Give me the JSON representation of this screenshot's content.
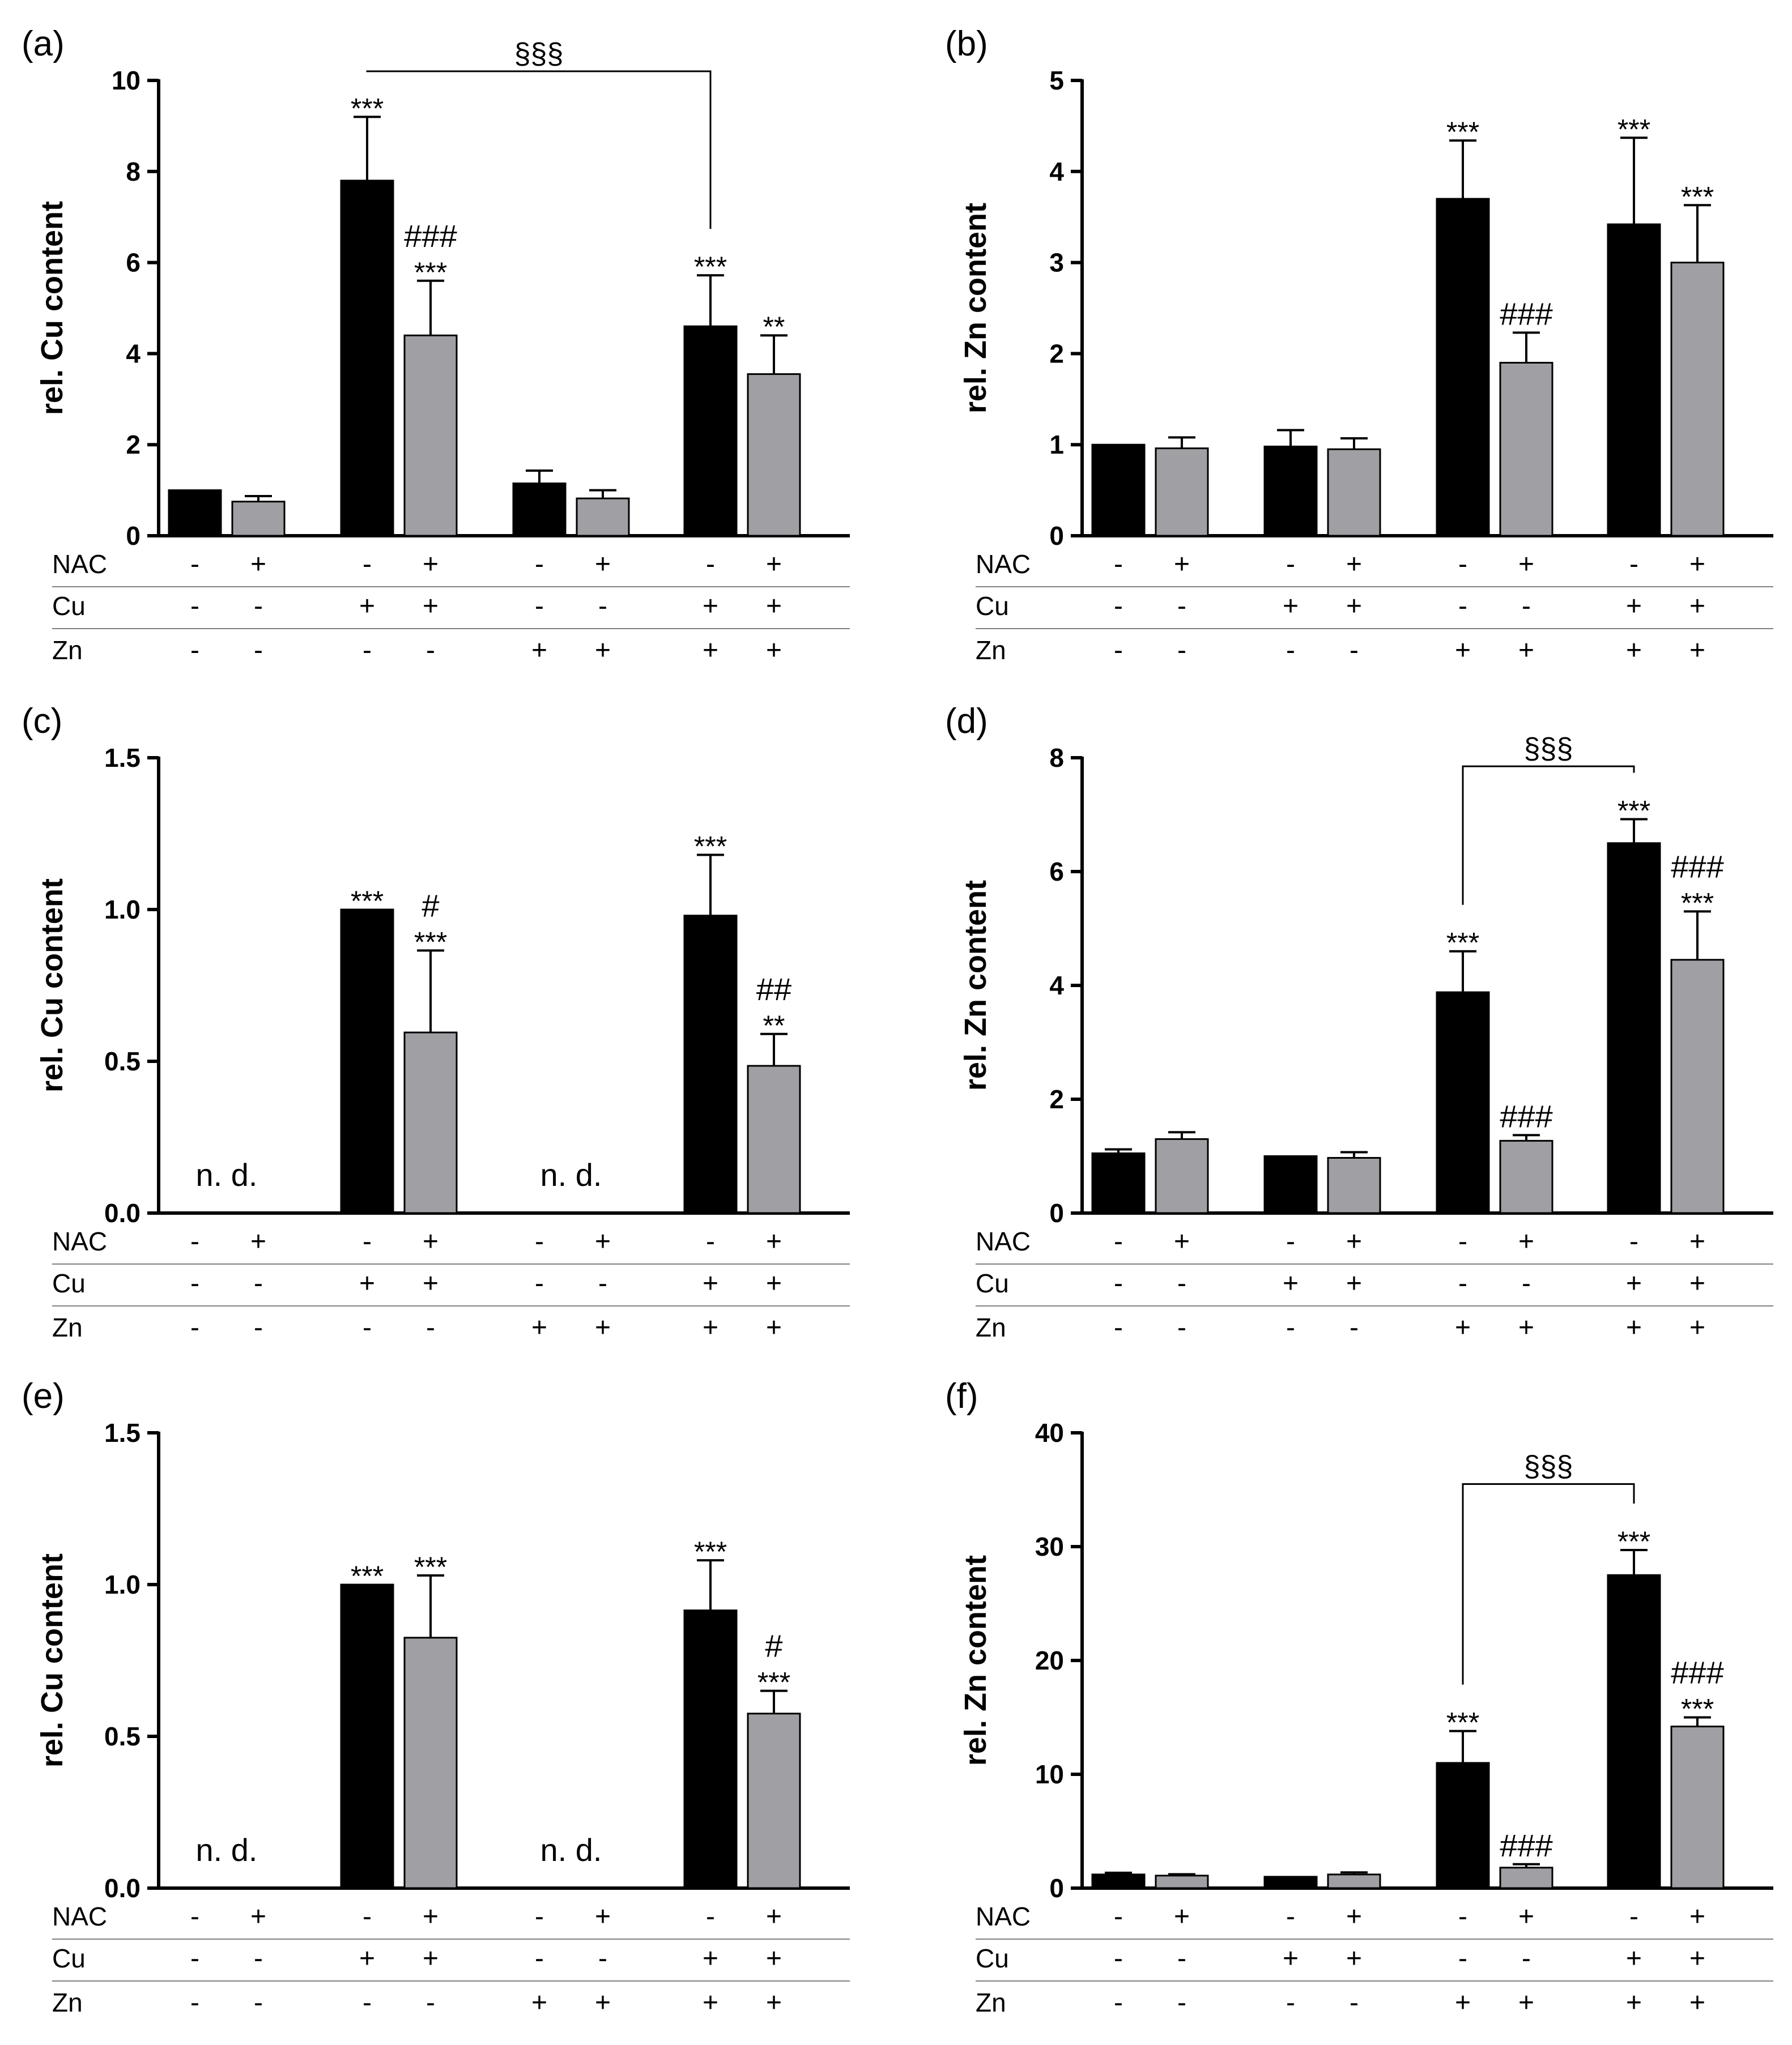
{
  "chart_data": [
    {
      "id": "a",
      "type": "bar",
      "panel_label": "(a)",
      "ylabel": "rel. Cu content",
      "ylim": [
        0,
        10
      ],
      "yticks": [
        0,
        2,
        4,
        6,
        8,
        10
      ],
      "ytick_labels": [
        "0",
        "2",
        "4",
        "6",
        "8",
        "10"
      ],
      "series": [
        {
          "name": "without NAC",
          "color": "#000000",
          "values": [
            1.0,
            7.8,
            1.15,
            4.6
          ],
          "errors": [
            0,
            1.4,
            0.28,
            1.12
          ]
        },
        {
          "name": "with NAC",
          "color": "#a0a0a4",
          "values": [
            0.75,
            4.4,
            0.82,
            3.55
          ],
          "errors": [
            0.12,
            1.2,
            0.18,
            0.85
          ]
        }
      ],
      "annotations": [
        {
          "group": 1,
          "series": 0,
          "lines": [
            "***"
          ]
        },
        {
          "group": 1,
          "series": 1,
          "lines": [
            "###",
            "***"
          ]
        },
        {
          "group": 3,
          "series": 0,
          "lines": [
            "***"
          ]
        },
        {
          "group": 3,
          "series": 1,
          "lines": [
            "**"
          ]
        }
      ],
      "bracket": {
        "label": "§§§",
        "from_group": 1,
        "to_group": 3,
        "level": 10.2
      },
      "not_detected": []
    },
    {
      "id": "b",
      "type": "bar",
      "panel_label": "(b)",
      "ylabel": "rel. Zn content",
      "ylim": [
        0,
        5
      ],
      "yticks": [
        0,
        1,
        2,
        3,
        4,
        5
      ],
      "ytick_labels": [
        "0",
        "1",
        "2",
        "3",
        "4",
        "5"
      ],
      "series": [
        {
          "name": "without NAC",
          "color": "#000000",
          "values": [
            1.0,
            0.98,
            3.7,
            3.42
          ],
          "errors": [
            0,
            0.18,
            0.64,
            0.95
          ]
        },
        {
          "name": "with NAC",
          "color": "#a0a0a4",
          "values": [
            0.96,
            0.95,
            1.9,
            3.0
          ],
          "errors": [
            0.12,
            0.12,
            0.33,
            0.63
          ]
        }
      ],
      "annotations": [
        {
          "group": 2,
          "series": 0,
          "lines": [
            "***"
          ]
        },
        {
          "group": 2,
          "series": 1,
          "lines": [
            "###"
          ]
        },
        {
          "group": 3,
          "series": 0,
          "lines": [
            "***"
          ]
        },
        {
          "group": 3,
          "series": 1,
          "lines": [
            "***"
          ]
        }
      ],
      "bracket": null,
      "not_detected": []
    },
    {
      "id": "c",
      "type": "bar",
      "panel_label": "(c)",
      "ylabel": "rel. Cu content",
      "ylim": [
        0,
        1.5
      ],
      "yticks": [
        0,
        0.5,
        1.0,
        1.5
      ],
      "ytick_labels": [
        "0.0",
        "0.5",
        "1.0",
        "1.5"
      ],
      "series": [
        {
          "name": "without NAC",
          "color": "#000000",
          "values": [
            0,
            1.0,
            0,
            0.98
          ],
          "errors": [
            0,
            0,
            0,
            0.2
          ]
        },
        {
          "name": "with NAC",
          "color": "#a0a0a4",
          "values": [
            0,
            0.595,
            0,
            0.485
          ],
          "errors": [
            0,
            0.27,
            0,
            0.105
          ]
        }
      ],
      "annotations": [
        {
          "group": 1,
          "series": 0,
          "lines": [
            "***"
          ]
        },
        {
          "group": 1,
          "series": 1,
          "lines": [
            "#",
            "***"
          ]
        },
        {
          "group": 3,
          "series": 0,
          "lines": [
            "***"
          ]
        },
        {
          "group": 3,
          "series": 1,
          "lines": [
            "##",
            "**"
          ]
        }
      ],
      "bracket": null,
      "not_detected": [
        {
          "group": 0,
          "text": "n. d."
        },
        {
          "group": 2,
          "text": "n. d."
        }
      ]
    },
    {
      "id": "d",
      "type": "bar",
      "panel_label": "(d)",
      "ylabel": "rel. Zn content",
      "ylim": [
        0,
        8
      ],
      "yticks": [
        0,
        2,
        4,
        6,
        8
      ],
      "ytick_labels": [
        "0",
        "2",
        "4",
        "6",
        "8"
      ],
      "series": [
        {
          "name": "without NAC",
          "color": "#000000",
          "values": [
            1.05,
            1.0,
            3.88,
            6.5
          ],
          "errors": [
            0.07,
            0,
            0.72,
            0.42
          ]
        },
        {
          "name": "with NAC",
          "color": "#a0a0a4",
          "values": [
            1.3,
            0.97,
            1.27,
            4.45
          ],
          "errors": [
            0.12,
            0.1,
            0.1,
            0.85
          ]
        }
      ],
      "annotations": [
        {
          "group": 2,
          "series": 0,
          "lines": [
            "***"
          ]
        },
        {
          "group": 2,
          "series": 1,
          "lines": [
            "###"
          ]
        },
        {
          "group": 3,
          "series": 0,
          "lines": [
            "***"
          ]
        },
        {
          "group": 3,
          "series": 1,
          "lines": [
            "###",
            "***"
          ]
        }
      ],
      "bracket": {
        "label": "§§§",
        "from_group": 2,
        "to_group": 3,
        "level": 7.85
      },
      "not_detected": []
    },
    {
      "id": "e",
      "type": "bar",
      "panel_label": "(e)",
      "ylabel": "rel. Cu content",
      "ylim": [
        0,
        1.5
      ],
      "yticks": [
        0,
        0.5,
        1.0,
        1.5
      ],
      "ytick_labels": [
        "0.0",
        "0.5",
        "1.0",
        "1.5"
      ],
      "series": [
        {
          "name": "without NAC",
          "color": "#000000",
          "values": [
            0,
            1.0,
            0,
            0.915
          ],
          "errors": [
            0,
            0,
            0,
            0.165
          ]
        },
        {
          "name": "with NAC",
          "color": "#a0a0a4",
          "values": [
            0,
            0.825,
            0,
            0.575
          ],
          "errors": [
            0,
            0.205,
            0,
            0.075
          ]
        }
      ],
      "annotations": [
        {
          "group": 1,
          "series": 0,
          "lines": [
            "***"
          ]
        },
        {
          "group": 1,
          "series": 1,
          "lines": [
            "***"
          ]
        },
        {
          "group": 3,
          "series": 0,
          "lines": [
            "***"
          ]
        },
        {
          "group": 3,
          "series": 1,
          "lines": [
            "#",
            "***"
          ]
        }
      ],
      "bracket": null,
      "not_detected": [
        {
          "group": 0,
          "text": "n. d."
        },
        {
          "group": 2,
          "text": "n. d."
        }
      ]
    },
    {
      "id": "f",
      "type": "bar",
      "panel_label": "(f)",
      "ylabel": "rel. Zn content",
      "ylim": [
        0,
        40
      ],
      "yticks": [
        0,
        10,
        20,
        30,
        40
      ],
      "ytick_labels": [
        "0",
        "10",
        "20",
        "30",
        "40"
      ],
      "series": [
        {
          "name": "without NAC",
          "color": "#000000",
          "values": [
            1.2,
            1.0,
            11.0,
            27.5
          ],
          "errors": [
            0.15,
            0,
            2.8,
            2.2
          ]
        },
        {
          "name": "with NAC",
          "color": "#a0a0a4",
          "values": [
            1.1,
            1.2,
            1.8,
            14.2
          ],
          "errors": [
            0.12,
            0.18,
            0.3,
            0.8
          ]
        }
      ],
      "annotations": [
        {
          "group": 2,
          "series": 0,
          "lines": [
            "***"
          ]
        },
        {
          "group": 2,
          "series": 1,
          "lines": [
            "###"
          ]
        },
        {
          "group": 3,
          "series": 0,
          "lines": [
            "***"
          ]
        },
        {
          "group": 3,
          "series": 1,
          "lines": [
            "###",
            "***"
          ]
        }
      ],
      "bracket": {
        "label": "§§§",
        "from_group": 2,
        "to_group": 3,
        "level": 35.5
      },
      "not_detected": []
    }
  ],
  "treatment_rows": [
    {
      "label": "NAC",
      "signs": [
        "-",
        "+",
        "-",
        "+",
        "-",
        "+",
        "-",
        "+"
      ]
    },
    {
      "label": "Cu",
      "signs": [
        "-",
        "-",
        "+",
        "+",
        "-",
        "-",
        "+",
        "+"
      ]
    },
    {
      "label": "Zn",
      "signs": [
        "-",
        "-",
        "-",
        "-",
        "+",
        "+",
        "+",
        "+"
      ]
    }
  ],
  "colors": {
    "black_bar": "#000000",
    "grey_bar": "#a0a0a4",
    "axis": "#000000",
    "row_separator": "#808080"
  }
}
